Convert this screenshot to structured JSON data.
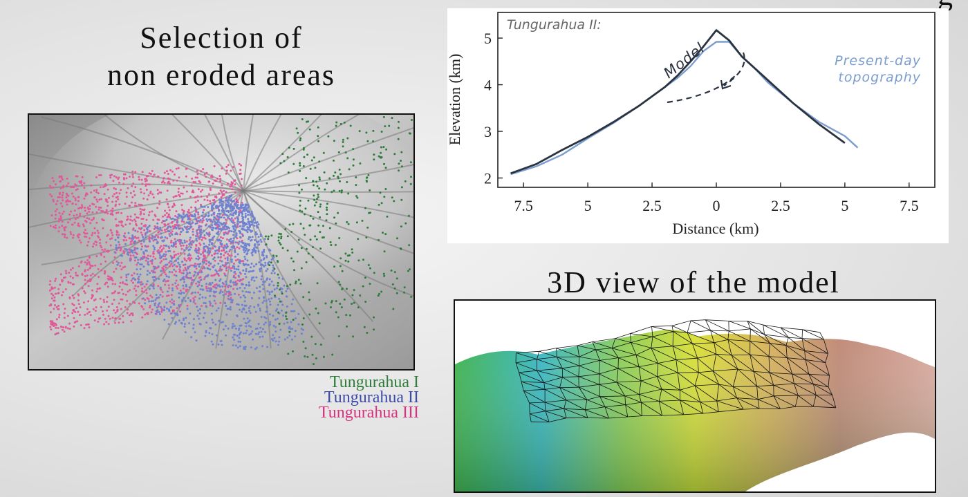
{
  "titles": {
    "left": [
      "Selection of",
      "non eroded areas"
    ],
    "corner_fragment": "g",
    "view3d": "3D view of the model"
  },
  "legend": [
    {
      "label": "Tungurahua I",
      "color": "#2e7d3c"
    },
    {
      "label": "Tungurahua II",
      "color": "#3d4aa8"
    },
    {
      "label": "Tungurahua III",
      "color": "#d6337e"
    }
  ],
  "colors": {
    "model_line": "#2a3340",
    "topography_line": "#7b9dcf",
    "tungurahua_I_dots": "#2e7d3c",
    "tungurahua_II_dots": "#6e82d0",
    "tungurahua_III_dots": "#e05a9a"
  },
  "chart_data": {
    "type": "line",
    "title": "Tungurahua II:",
    "xlabel": "Distance (km)",
    "ylabel": "Elevation (km)",
    "xlim": [
      -8.5,
      8.5
    ],
    "ylim": [
      1.8,
      5.55
    ],
    "x_ticks": [
      -7.5,
      -5,
      -2.5,
      0,
      2.5,
      5,
      7.5
    ],
    "x_tick_labels": [
      "7.5",
      "5",
      "2.5",
      "0",
      "2.5",
      "5",
      "7.5"
    ],
    "y_ticks": [
      2,
      3,
      4,
      5
    ],
    "y_tick_labels": [
      "2",
      "3",
      "4",
      "5"
    ],
    "series": [
      {
        "name": "Model",
        "x": [
          -8.0,
          -7.0,
          -6.0,
          -5.0,
          -4.0,
          -3.0,
          -2.0,
          -1.5,
          -1.0,
          -0.5,
          0.0,
          0.5,
          1.0,
          2.0,
          3.0,
          4.0,
          5.0
        ],
        "y": [
          2.1,
          2.3,
          2.6,
          2.88,
          3.2,
          3.55,
          3.95,
          4.2,
          4.5,
          4.82,
          5.17,
          4.95,
          4.6,
          4.1,
          3.6,
          3.15,
          2.75
        ]
      },
      {
        "name": "Present-day topography",
        "x": [
          -8.0,
          -7.0,
          -6.0,
          -5.0,
          -4.0,
          -3.0,
          -2.0,
          -1.5,
          -1.0,
          -0.5,
          0.0,
          0.5,
          1.0,
          1.5,
          2.0,
          3.0,
          4.0,
          4.5,
          5.0,
          5.5
        ],
        "y": [
          2.08,
          2.25,
          2.5,
          2.85,
          3.18,
          3.55,
          3.95,
          4.15,
          4.4,
          4.72,
          4.92,
          4.92,
          4.6,
          4.35,
          4.05,
          3.6,
          3.2,
          3.05,
          2.9,
          2.65
        ]
      }
    ],
    "annotations": {
      "model_label": "Model",
      "topography_label": [
        "Present-day",
        "topography"
      ]
    },
    "grid": false
  }
}
